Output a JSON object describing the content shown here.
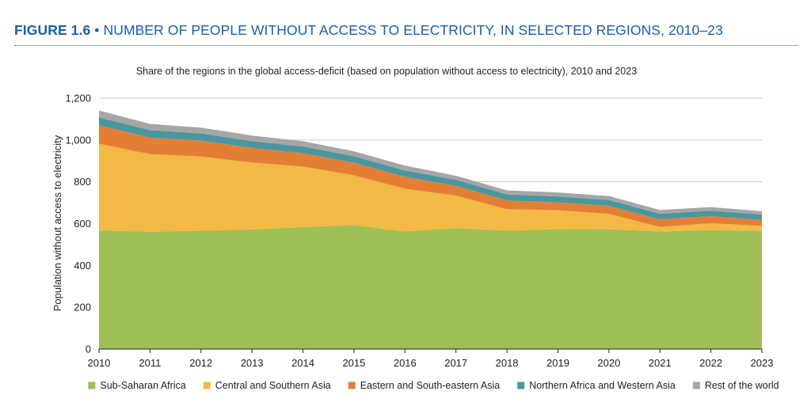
{
  "figure": {
    "label": "FIGURE 1.6",
    "separator": "•",
    "title": "NUMBER OF PEOPLE WITHOUT ACCESS TO ELECTRICITY, IN SELECTED REGIONS, 2010–23"
  },
  "chart_data": {
    "type": "area",
    "stacked": true,
    "subtitle": "Share of the regions in the global access-deficit (based on population without access to electricity), 2010 and 2023",
    "ylabel": "Population without access to electricity",
    "xlabel": "",
    "ylim": [
      0,
      1200
    ],
    "yticks": [
      0,
      200,
      400,
      600,
      800,
      1000,
      1200
    ],
    "ytick_labels": [
      "0",
      "200",
      "400",
      "600",
      "800",
      "1,000",
      "1,200"
    ],
    "grid": true,
    "legend_position": "bottom",
    "x": [
      "2010",
      "2011",
      "2012",
      "2013",
      "2014",
      "2015",
      "2016",
      "2017",
      "2018",
      "2019",
      "2020",
      "2021",
      "2022",
      "2023"
    ],
    "series": [
      {
        "name": "Sub-Saharan Africa",
        "color": "#9dbf55",
        "values": [
          567,
          561,
          566,
          572,
          583,
          593,
          562,
          579,
          566,
          574,
          573,
          562,
          569,
          565
        ]
      },
      {
        "name": "Central and Southern Asia",
        "color": "#f2b945",
        "values": [
          415,
          371,
          355,
          320,
          290,
          238,
          205,
          155,
          103,
          90,
          74,
          22,
          33,
          24
        ]
      },
      {
        "name": "Eastern and South-eastern Asia",
        "color": "#e57e35",
        "values": [
          88,
          79,
          76,
          70,
          64,
          60,
          57,
          46,
          42,
          38,
          38,
          36,
          34,
          28
        ]
      },
      {
        "name": "Northern Africa and Western Asia",
        "color": "#4a969e",
        "values": [
          38,
          36,
          34,
          33,
          32,
          31,
          30,
          29,
          29,
          28,
          28,
          27,
          26,
          26
        ]
      },
      {
        "name": "Rest of the world",
        "color": "#a6a6a6",
        "values": [
          33,
          30,
          28,
          26,
          25,
          24,
          24,
          20,
          19,
          19,
          19,
          18,
          17,
          16
        ]
      }
    ]
  }
}
